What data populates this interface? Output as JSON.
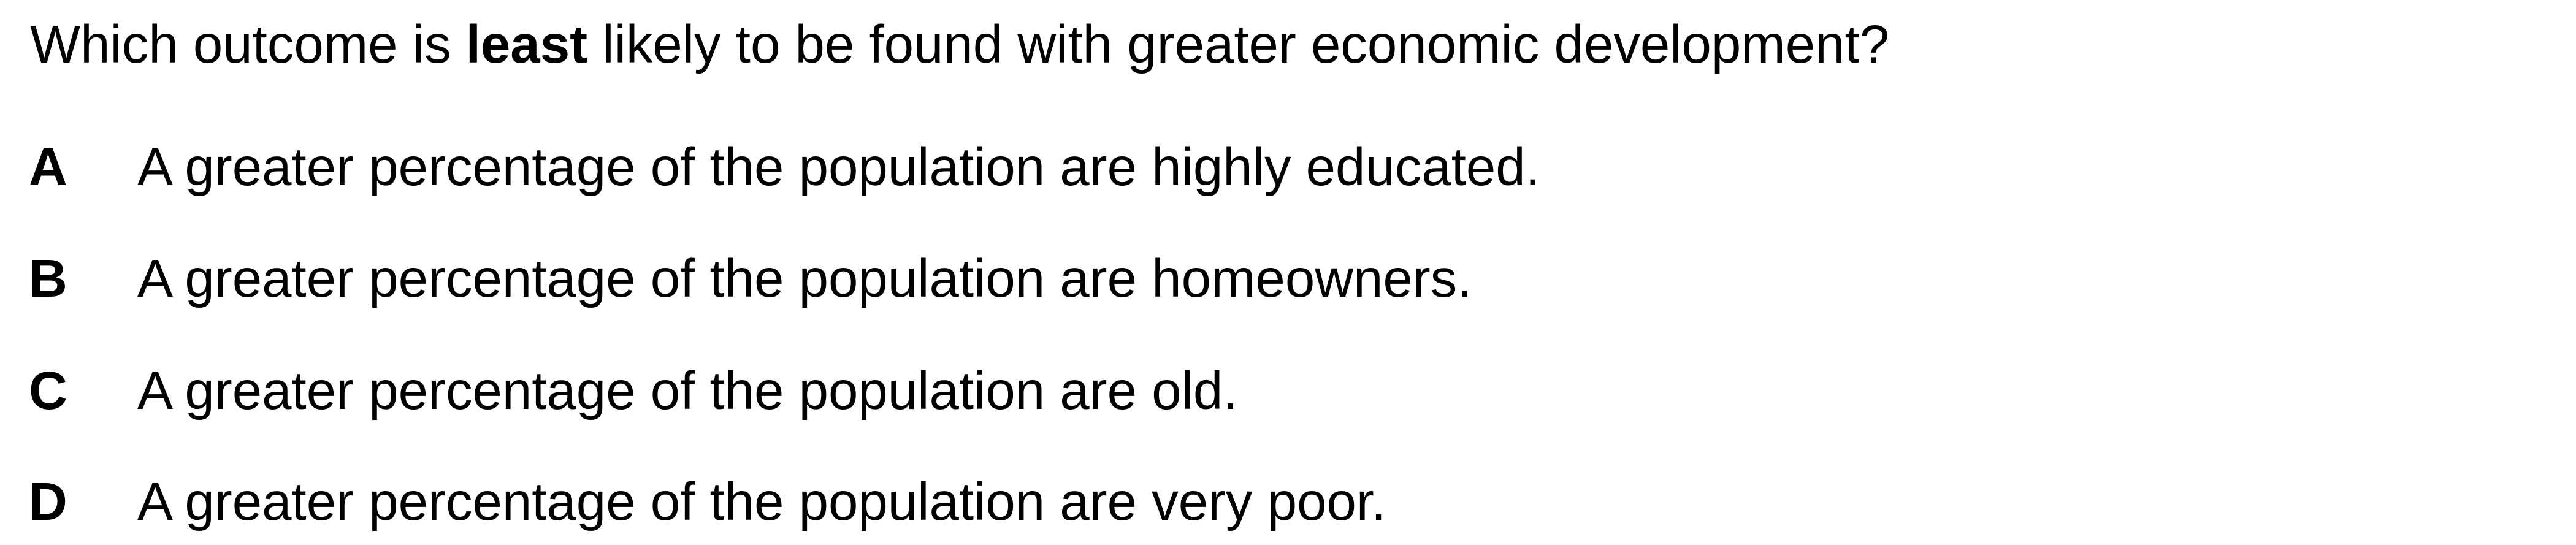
{
  "question": {
    "prefix": "Which outcome is ",
    "emphasis": "least",
    "suffix": " likely to be found with greater economic development?"
  },
  "options": [
    {
      "letter": "A",
      "text": "A greater percentage of the population are highly educated."
    },
    {
      "letter": "B",
      "text": "A greater percentage of the population are homeowners."
    },
    {
      "letter": "C",
      "text": "A greater percentage of the population are old."
    },
    {
      "letter": "D",
      "text": "A greater percentage of the population are very poor."
    }
  ]
}
